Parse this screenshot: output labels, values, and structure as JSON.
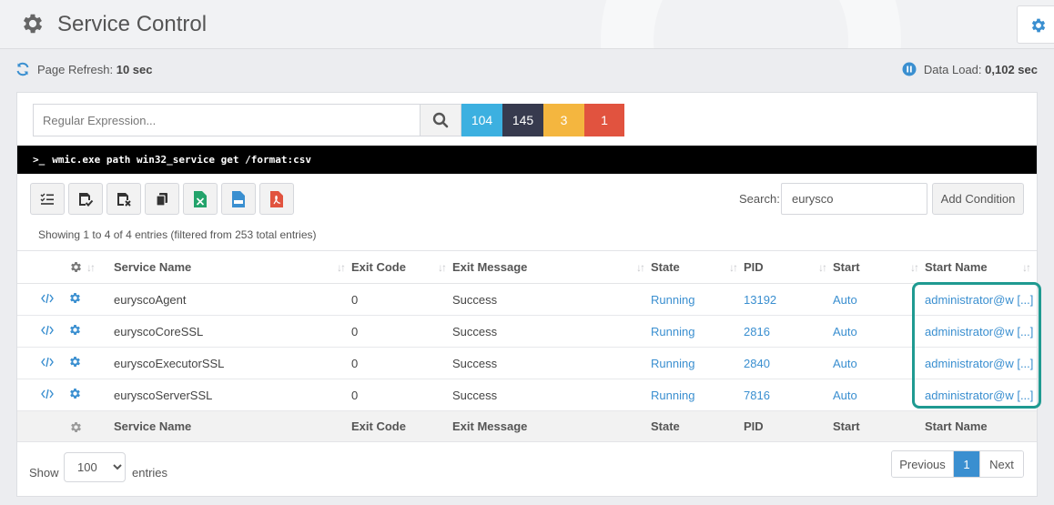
{
  "header": {
    "title": "Service Control"
  },
  "status": {
    "refresh_label": "Page Refresh:",
    "refresh_value": "10 sec",
    "load_label": "Data Load:",
    "load_value": "0,102 sec"
  },
  "filter": {
    "placeholder": "Regular Expression...",
    "badges": [
      {
        "value": "104",
        "color": "#3cb0e0"
      },
      {
        "value": "145",
        "color": "#373a4e"
      },
      {
        "value": "3",
        "color": "#f4b63f"
      },
      {
        "value": "1",
        "color": "#e1533f"
      }
    ]
  },
  "command": {
    "prompt": ">_",
    "text": "wmic.exe path win32_service get /format:csv"
  },
  "toolbar": {
    "buttons": [
      "columns-list-icon",
      "save-check-icon",
      "save-remove-icon",
      "copy-icon",
      "excel-icon",
      "csv-icon",
      "pdf-icon"
    ],
    "search_label": "Search:",
    "search_value": "eurysco",
    "add_condition": "Add Condition"
  },
  "table": {
    "info": "Showing 1 to 4 of 4 entries (filtered from 253 total entries)",
    "columns": [
      "Service Name",
      "Exit Code",
      "Exit Message",
      "State",
      "PID",
      "Start",
      "Start Name"
    ],
    "rows": [
      {
        "name": "euryscoAgent",
        "exit_code": "0",
        "exit_message": "Success",
        "state": "Running",
        "pid": "13192",
        "start": "Auto",
        "start_name": "administrator@w [...]"
      },
      {
        "name": "euryscoCoreSSL",
        "exit_code": "0",
        "exit_message": "Success",
        "state": "Running",
        "pid": "2816",
        "start": "Auto",
        "start_name": "administrator@w [...]"
      },
      {
        "name": "euryscoExecutorSSL",
        "exit_code": "0",
        "exit_message": "Success",
        "state": "Running",
        "pid": "2840",
        "start": "Auto",
        "start_name": "administrator@w [...]"
      },
      {
        "name": "euryscoServerSSL",
        "exit_code": "0",
        "exit_message": "Success",
        "state": "Running",
        "pid": "7816",
        "start": "Auto",
        "start_name": "administrator@w [...]"
      }
    ]
  },
  "footer": {
    "show_label": "Show",
    "page_size": "100",
    "entries_label": "entries",
    "previous": "Previous",
    "current_page": "1",
    "next": "Next"
  },
  "colors": {
    "accent": "#3a8fd0",
    "highlight": "#1f9a91"
  }
}
